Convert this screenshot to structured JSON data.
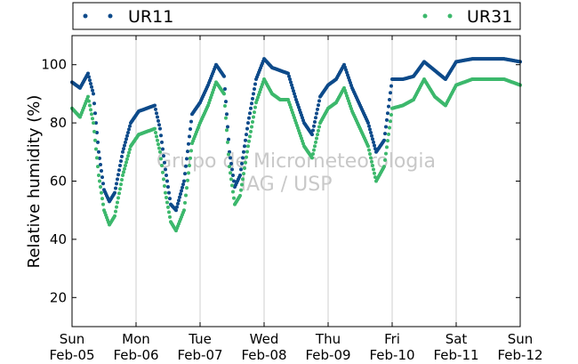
{
  "chart_data": {
    "type": "scatter",
    "title": "",
    "xlabel": "",
    "ylabel": "Relative humidity (%)",
    "xlim": [
      "2014-02-05T00:00",
      "2014-02-12T00:00"
    ],
    "ylim": [
      10,
      110
    ],
    "yticks": [
      20,
      40,
      60,
      80,
      100
    ],
    "grid": "vertical",
    "legend_position": "top",
    "watermark": [
      "Grupo de Micrometeorologia",
      "IAG / USP"
    ],
    "xtick_labels": [
      {
        "day": "Sun",
        "date": "Feb-05"
      },
      {
        "day": "Mon",
        "date": "Feb-06"
      },
      {
        "day": "Tue",
        "date": "Feb-07"
      },
      {
        "day": "Wed",
        "date": "Feb-08"
      },
      {
        "day": "Thu",
        "date": "Feb-09"
      },
      {
        "day": "Fri",
        "date": "Feb-10"
      },
      {
        "day": "Sat",
        "date": "Feb-11"
      },
      {
        "day": "Sun",
        "date": "Feb-12"
      }
    ],
    "series": [
      {
        "name": "UR11",
        "color": "#0d4a8a",
        "x": [
          "2014-02-05T00:00",
          "2014-02-05T03:00",
          "2014-02-05T06:00",
          "2014-02-05T08:00",
          "2014-02-05T10:00",
          "2014-02-05T12:00",
          "2014-02-05T14:00",
          "2014-02-05T16:00",
          "2014-02-05T19:00",
          "2014-02-05T22:00",
          "2014-02-06T01:00",
          "2014-02-06T04:00",
          "2014-02-06T07:00",
          "2014-02-06T09:00",
          "2014-02-06T11:00",
          "2014-02-06T13:00",
          "2014-02-06T15:00",
          "2014-02-06T18:00",
          "2014-02-06T21:00",
          "2014-02-07T00:00",
          "2014-02-07T03:00",
          "2014-02-07T06:00",
          "2014-02-07T09:00",
          "2014-02-07T11:00",
          "2014-02-07T13:00",
          "2014-02-07T15:00",
          "2014-02-07T18:00",
          "2014-02-07T21:00",
          "2014-02-08T00:00",
          "2014-02-08T03:00",
          "2014-02-08T06:00",
          "2014-02-08T09:00",
          "2014-02-08T12:00",
          "2014-02-08T15:00",
          "2014-02-08T18:00",
          "2014-02-08T21:00",
          "2014-02-09T00:00",
          "2014-02-09T03:00",
          "2014-02-09T06:00",
          "2014-02-09T09:00",
          "2014-02-09T12:00",
          "2014-02-09T15:00",
          "2014-02-09T18:00",
          "2014-02-09T21:00",
          "2014-02-10T00:00",
          "2014-02-10T04:00",
          "2014-02-10T08:00",
          "2014-02-10T12:00",
          "2014-02-10T16:00",
          "2014-02-10T20:00",
          "2014-02-11T00:00",
          "2014-02-11T06:00",
          "2014-02-11T12:00",
          "2014-02-11T18:00",
          "2014-02-12T00:00"
        ],
        "y": [
          94,
          92,
          97,
          90,
          70,
          57,
          53,
          56,
          70,
          80,
          84,
          85,
          86,
          78,
          64,
          52,
          50,
          60,
          83,
          87,
          93,
          100,
          96,
          70,
          58,
          62,
          80,
          95,
          102,
          99,
          98,
          97,
          88,
          80,
          76,
          89,
          93,
          95,
          100,
          92,
          86,
          80,
          70,
          74,
          95,
          95,
          96,
          101,
          98,
          95,
          101,
          102,
          102,
          102,
          101
        ]
      },
      {
        "name": "UR31",
        "color": "#3cb86c",
        "x": [
          "2014-02-05T00:00",
          "2014-02-05T03:00",
          "2014-02-05T06:00",
          "2014-02-05T08:00",
          "2014-02-05T10:00",
          "2014-02-05T12:00",
          "2014-02-05T14:00",
          "2014-02-05T16:00",
          "2014-02-05T19:00",
          "2014-02-05T22:00",
          "2014-02-06T01:00",
          "2014-02-06T04:00",
          "2014-02-06T07:00",
          "2014-02-06T09:00",
          "2014-02-06T11:00",
          "2014-02-06T13:00",
          "2014-02-06T15:00",
          "2014-02-06T18:00",
          "2014-02-06T21:00",
          "2014-02-07T00:00",
          "2014-02-07T03:00",
          "2014-02-07T06:00",
          "2014-02-07T09:00",
          "2014-02-07T11:00",
          "2014-02-07T13:00",
          "2014-02-07T15:00",
          "2014-02-07T18:00",
          "2014-02-07T21:00",
          "2014-02-08T00:00",
          "2014-02-08T03:00",
          "2014-02-08T06:00",
          "2014-02-08T09:00",
          "2014-02-08T12:00",
          "2014-02-08T15:00",
          "2014-02-08T18:00",
          "2014-02-08T21:00",
          "2014-02-09T00:00",
          "2014-02-09T03:00",
          "2014-02-09T06:00",
          "2014-02-09T09:00",
          "2014-02-09T12:00",
          "2014-02-09T15:00",
          "2014-02-09T18:00",
          "2014-02-09T21:00",
          "2014-02-10T00:00",
          "2014-02-10T04:00",
          "2014-02-10T08:00",
          "2014-02-10T12:00",
          "2014-02-10T16:00",
          "2014-02-10T20:00",
          "2014-02-11T00:00",
          "2014-02-11T06:00",
          "2014-02-11T12:00",
          "2014-02-11T18:00",
          "2014-02-12T00:00"
        ],
        "y": [
          85,
          82,
          89,
          80,
          62,
          50,
          45,
          48,
          62,
          72,
          76,
          77,
          78,
          70,
          56,
          46,
          43,
          50,
          73,
          80,
          86,
          94,
          90,
          65,
          52,
          55,
          72,
          87,
          95,
          90,
          88,
          88,
          80,
          72,
          68,
          80,
          85,
          87,
          92,
          84,
          78,
          72,
          60,
          65,
          85,
          86,
          88,
          95,
          89,
          86,
          93,
          95,
          95,
          95,
          93
        ]
      }
    ]
  }
}
